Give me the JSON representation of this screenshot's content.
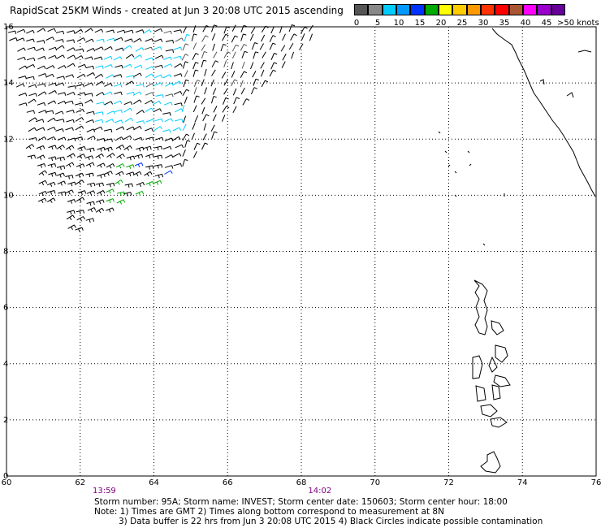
{
  "title": "RapidScat 25KM Winds - created at Jun  3 20:08 UTC 2015 ascending",
  "legend": {
    "colors": [
      "#555555",
      "#888888",
      "#00ccff",
      "#0099ff",
      "#0033ff",
      "#00aa00",
      "#ffff00",
      "#ffcc00",
      "#ff9900",
      "#ff3300",
      "#ff0000",
      "#aa5533",
      "#ff00ff",
      "#9900cc",
      "#660099"
    ],
    "labels": [
      "0",
      "5",
      "10",
      "15",
      "20",
      "25",
      "30",
      "35",
      "40",
      "45"
    ],
    "unit": ">50 knots"
  },
  "axes": {
    "x_ticks": [
      "60",
      "62",
      "64",
      "66",
      "68",
      "70",
      "72",
      "74",
      "76"
    ],
    "y_ticks": [
      "0",
      "2",
      "4",
      "6",
      "8",
      "10",
      "12",
      "14",
      "16"
    ]
  },
  "time_marks": [
    {
      "label": "13:59",
      "lon": 62.6
    },
    {
      "label": "14:02",
      "lon": 68.45
    }
  ],
  "footer": {
    "line1": "Storm number: 95A;  Storm name: INVEST;  Storm center date: 150603;  Storm center hour: 18:00",
    "line2": "Note: 1) Times are GMT  2) Times along bottom correspond to measurement at 8N",
    "line3": "3) Data buffer is 22 hrs from Jun  3 20:08 UTC 2015   4) Black Circles indicate possible contamination"
  }
}
